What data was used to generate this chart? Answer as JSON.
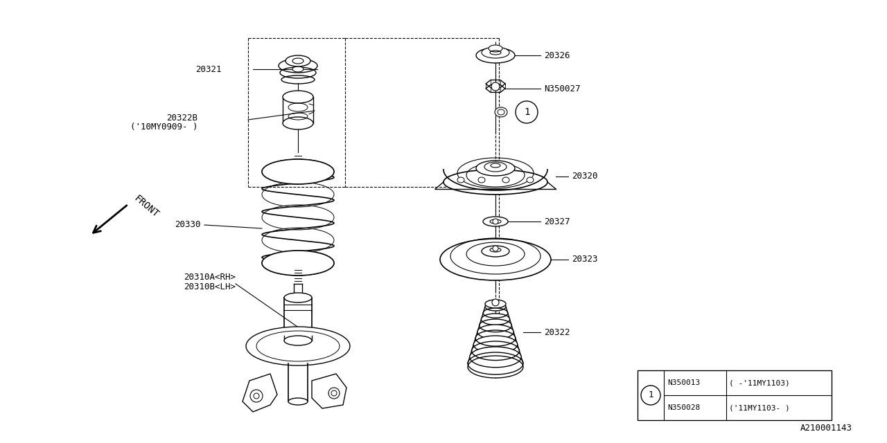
{
  "bg_color": "#ffffff",
  "line_color": "#000000",
  "fig_id": "A210001143",
  "table": {
    "rows": [
      [
        "N350013",
        "( -'11MY1103)"
      ],
      [
        "N350028",
        "('11MY1103- )"
      ]
    ]
  }
}
